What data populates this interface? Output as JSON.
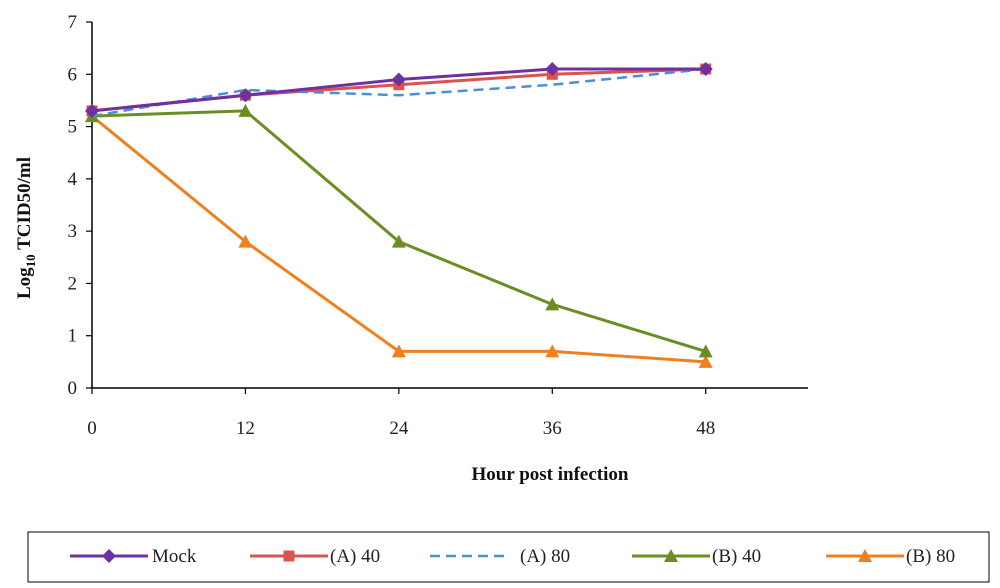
{
  "chart_data": {
    "type": "line",
    "title": "",
    "xlabel": "Hour post infection",
    "ylabel": {
      "main": "Log",
      "sub": "10",
      "rest": " TCID50/ml"
    },
    "x": [
      0,
      12,
      24,
      36,
      48
    ],
    "x_ticks": [
      "0",
      "12",
      "24",
      "36",
      "48"
    ],
    "xlim": [
      0,
      56
    ],
    "ylim": [
      0,
      7
    ],
    "y_ticks": [
      "0",
      "1",
      "2",
      "3",
      "4",
      "5",
      "6",
      "7"
    ],
    "grid": false,
    "legend_position": "bottom",
    "series": [
      {
        "name": "Mock",
        "values": [
          5.3,
          5.6,
          5.9,
          6.1,
          6.1
        ],
        "color": "#7030A0",
        "marker": "diamond",
        "dashed": false
      },
      {
        "name": "(A) 40",
        "values": [
          5.3,
          5.6,
          5.8,
          6.0,
          6.1
        ],
        "color": "#D9534F",
        "marker": "square",
        "dashed": false
      },
      {
        "name": "(A) 80",
        "values": [
          5.2,
          5.7,
          5.6,
          5.8,
          6.1
        ],
        "color": "#4A90D9",
        "marker": "none",
        "dashed": true
      },
      {
        "name": "(B) 40",
        "values": [
          5.2,
          5.3,
          2.8,
          1.6,
          0.7
        ],
        "color": "#6B8E23",
        "marker": "triangle",
        "dashed": false
      },
      {
        "name": "(B) 80",
        "values": [
          5.2,
          2.8,
          0.7,
          0.7,
          0.5
        ],
        "color": "#F07F1E",
        "marker": "triangle",
        "dashed": false
      }
    ]
  }
}
